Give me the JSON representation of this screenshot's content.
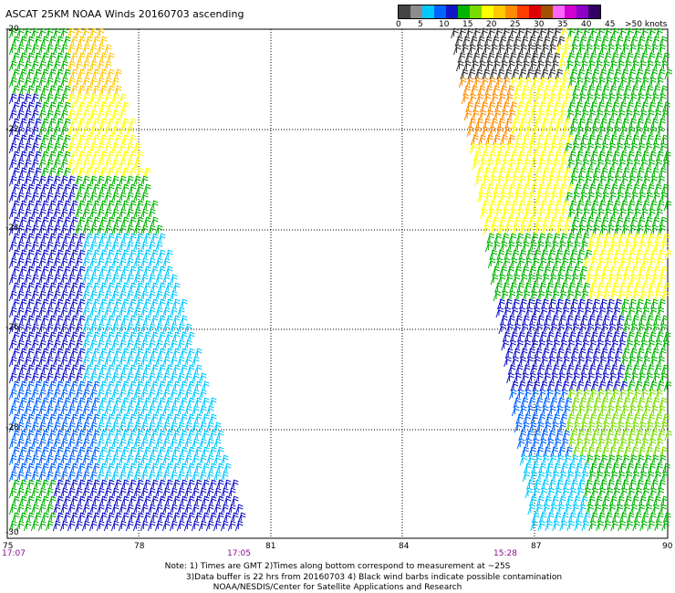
{
  "title": "ASCAT 25KM NOAA Winds 20160703 ascending",
  "legend": {
    "colors": [
      "#444444",
      "#8c8c8c",
      "#00c8ff",
      "#0064ff",
      "#1414c8",
      "#00b400",
      "#78dc00",
      "#ffff00",
      "#ffc800",
      "#ff8c00",
      "#ff3c00",
      "#dc0000",
      "#a05000",
      "#ff64ff",
      "#d200d2",
      "#8c00c8",
      "#320064"
    ],
    "labels": [
      "0",
      "5",
      "10",
      "15",
      "20",
      "25",
      "30",
      "35",
      "40",
      "45",
      ">50 knots"
    ]
  },
  "lat_labels": [
    "-20",
    "-22",
    "-24",
    "-26",
    "-28",
    "-30"
  ],
  "lon_labels": [
    "75",
    "78",
    "81",
    "84",
    "87",
    "90"
  ],
  "times": [
    "17:07",
    "17:05",
    "15:28"
  ],
  "notes": [
    "Note: 1) Times are GMT 2)Times along bottom correspond to measurement at ~25S",
    "3)Data buffer is 22 hrs from 20160703 4) Black wind barbs indicate possible contamination",
    "NOAA/NESDIS/Center for Satellite Applications and Research"
  ]
}
